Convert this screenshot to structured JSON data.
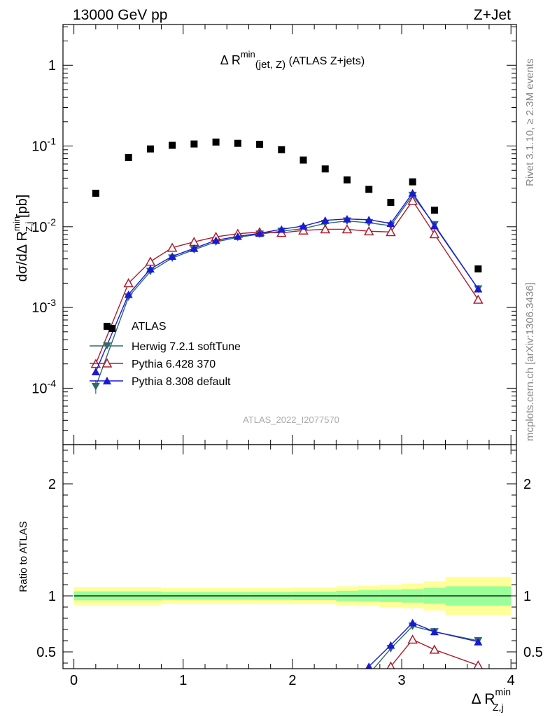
{
  "header": {
    "left": "13000 GeV pp",
    "right": "Z+Jet"
  },
  "side_labels": {
    "rivet": "Rivet 3.1.10, ≥ 2.3M events",
    "mcplots": "mcplots.cern.ch [arXiv:1306.3436]"
  },
  "plot_title": {
    "main": "Δ R",
    "sup": "min",
    "sub": "(jet, Z)",
    "rest": " (ATLAS Z+jets)"
  },
  "watermark": "ATLAS_2022_I2077570",
  "chart_data": {
    "type": "scatter",
    "x_label": {
      "main": "Δ R",
      "sup": "min",
      "sub": "Z,j"
    },
    "y_label": {
      "main": "dσ/dΔ R",
      "sup": "min",
      "sub": "Z,j",
      "unit": " [pb]"
    },
    "ratio_ylabel": "Ratio to ATLAS",
    "xlim": [
      -0.1,
      4.05
    ],
    "ylim": [
      2e-05,
      3.2
    ],
    "ylog": true,
    "ratio_ylim": [
      0.35,
      2.35
    ],
    "x_ticks": [
      "0",
      "1",
      "2",
      "3",
      "4"
    ],
    "y_ticks": [
      "1",
      "10^-1",
      "10^-2",
      "10^-3",
      "10^-4"
    ],
    "ratio_ticks": [
      "2",
      "1",
      "0.5"
    ],
    "legend_position": "bottom-left",
    "data": {
      "name": "ATLAS",
      "color": "#000000",
      "x": [
        0.2,
        0.35,
        0.5,
        0.7,
        0.9,
        1.1,
        1.3,
        1.5,
        1.7,
        1.9,
        2.1,
        2.3,
        2.5,
        2.7,
        2.9,
        3.1,
        3.3,
        3.7
      ],
      "y": [
        0.026,
        0.00055,
        0.072,
        0.092,
        0.102,
        0.106,
        0.112,
        0.108,
        0.105,
        0.09,
        0.067,
        0.052,
        0.038,
        0.029,
        0.02,
        0.036,
        0.016,
        0.003
      ]
    },
    "uncertainty_bands": {
      "x_edges": [
        0.0,
        0.8,
        1.2,
        1.6,
        2.0,
        2.4,
        2.6,
        2.8,
        3.0,
        3.2,
        3.4,
        4.0
      ],
      "inner_halfwidth": [
        0.04,
        0.035,
        0.035,
        0.035,
        0.038,
        0.045,
        0.05,
        0.055,
        0.06,
        0.07,
        0.085
      ],
      "outer_halfwidth": [
        0.08,
        0.07,
        0.07,
        0.07,
        0.075,
        0.085,
        0.09,
        0.1,
        0.11,
        0.13,
        0.17
      ],
      "inner_color": "#99ff99",
      "outer_color": "#ffff99"
    },
    "series": [
      {
        "name": "Herwig 7.2.1 softTune",
        "color": "#2e6b6b",
        "marker": "triangle-down-filled",
        "x": [
          0.2,
          0.5,
          0.7,
          0.9,
          1.1,
          1.3,
          1.5,
          1.7,
          1.9,
          2.1,
          2.3,
          2.5,
          2.7,
          2.9,
          3.1,
          3.3,
          3.7
        ],
        "y": [
          0.000105,
          0.00135,
          0.0028,
          0.0041,
          0.0052,
          0.0065,
          0.0074,
          0.0081,
          0.0088,
          0.0095,
          0.011,
          0.0118,
          0.0112,
          0.0103,
          0.0245,
          0.0106,
          0.0017
        ],
        "ratio_x": [
          2.7,
          2.9,
          3.1,
          3.3,
          3.7
        ],
        "ratio_y": [
          0.3,
          0.53,
          0.73,
          0.68,
          0.6
        ]
      },
      {
        "name": "Pythia 6.428 370",
        "color": "#aa1e2d",
        "marker": "triangle-up-open",
        "x": [
          0.2,
          0.5,
          0.7,
          0.9,
          1.1,
          1.3,
          1.5,
          1.7,
          1.9,
          2.1,
          2.3,
          2.5,
          2.7,
          2.9,
          3.1,
          3.3,
          3.7
        ],
        "y": [
          0.0002,
          0.002,
          0.0037,
          0.0055,
          0.0065,
          0.0075,
          0.0082,
          0.0086,
          0.0084,
          0.009,
          0.0093,
          0.0093,
          0.0088,
          0.0086,
          0.021,
          0.0081,
          0.00125
        ],
        "ratio_x": [
          2.9,
          3.1,
          3.3,
          3.7
        ],
        "ratio_y": [
          0.37,
          0.61,
          0.52,
          0.38
        ]
      },
      {
        "name": "Pythia 8.308 default",
        "color": "#1a1ad6",
        "marker": "triangle-up-filled",
        "x": [
          0.2,
          0.5,
          0.7,
          0.9,
          1.1,
          1.3,
          1.5,
          1.7,
          1.9,
          2.1,
          2.3,
          2.5,
          2.7,
          2.9,
          3.1,
          3.3,
          3.7
        ],
        "y": [
          0.00016,
          0.00145,
          0.003,
          0.0043,
          0.0054,
          0.0068,
          0.0076,
          0.0083,
          0.0093,
          0.0102,
          0.012,
          0.0125,
          0.0122,
          0.011,
          0.0262,
          0.0103,
          0.0017
        ],
        "ratio_x": [
          2.7,
          2.9,
          3.1,
          3.3,
          3.7
        ],
        "ratio_y": [
          0.37,
          0.56,
          0.76,
          0.68,
          0.59
        ]
      }
    ]
  }
}
